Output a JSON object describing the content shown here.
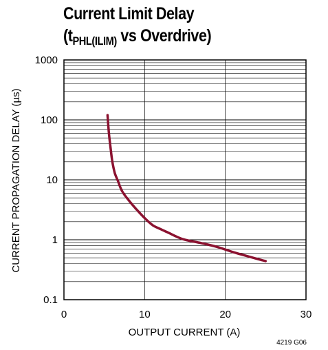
{
  "chart_data": {
    "type": "line",
    "title": {
      "line1": "Current Limit Delay",
      "line2_prefix": "(t",
      "line2_subscript": "PHL(ILIM)",
      "line2_suffix": " vs Overdrive)"
    },
    "xlabel": "OUTPUT CURRENT (A)",
    "ylabel": "CURRENT PROPAGATION DELAY (µs)",
    "xlim": [
      0,
      30
    ],
    "ylim": [
      0.1,
      1000
    ],
    "yscale": "log",
    "x_ticks": [
      "0",
      "10",
      "20",
      "30"
    ],
    "y_ticks": [
      "0.1",
      "1",
      "10",
      "100",
      "1000"
    ],
    "grid": true,
    "figure_note": "4219 G06",
    "series_color": "#8b1230",
    "series": [
      {
        "x": [
          5.4,
          5.5,
          5.6,
          5.8,
          6.0,
          6.3,
          6.7,
          7.2,
          8.0,
          9.0,
          10.0,
          11.0,
          12.0,
          13.0,
          14.0,
          15.0,
          17.0,
          19.0,
          21.0,
          23.0,
          25.0
        ],
        "y": [
          120,
          80,
          55,
          32,
          20,
          13,
          9.5,
          6.5,
          4.6,
          3.2,
          2.3,
          1.75,
          1.5,
          1.3,
          1.12,
          1.0,
          0.88,
          0.76,
          0.62,
          0.52,
          0.44
        ]
      }
    ]
  }
}
